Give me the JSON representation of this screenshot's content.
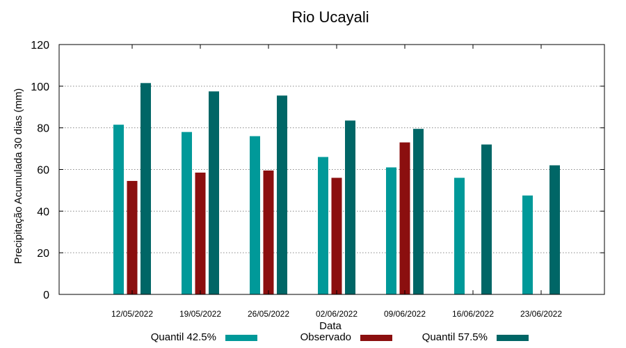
{
  "chart_data": {
    "type": "bar",
    "title": "Rio Ucayali",
    "xlabel": "Data",
    "ylabel": "Precipitação Acumulada 30 dias (mm)",
    "ylim": [
      0,
      120
    ],
    "yticks": [
      0,
      20,
      40,
      60,
      80,
      100,
      120
    ],
    "grid": true,
    "legend_position": "bottom",
    "categories": [
      "12/05/2022",
      "19/05/2022",
      "26/05/2022",
      "02/06/2022",
      "09/06/2022",
      "16/06/2022",
      "23/06/2022"
    ],
    "series": [
      {
        "name": "Quantil 42.5%",
        "color": "#009999",
        "values": [
          81.5,
          78,
          76,
          66,
          61,
          56,
          47.5
        ]
      },
      {
        "name": "Observado",
        "color": "#8b0f0f",
        "values": [
          54.5,
          58.5,
          59.5,
          56,
          73,
          null,
          null
        ]
      },
      {
        "name": "Quantil 57.5%",
        "color": "#006666",
        "values": [
          101.5,
          97.5,
          95.5,
          83.5,
          79.5,
          72,
          62
        ]
      }
    ]
  }
}
